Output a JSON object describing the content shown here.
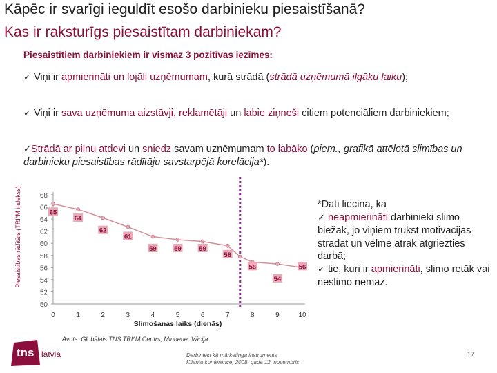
{
  "title_line1": "Kāpēc ir svarīgi ieguldīt esošo darbinieku piesaistīšanā?",
  "title_line2": "Kas ir raksturīgs piesaistītam darbiniekam?",
  "intro": "Piesaistītiem darbiniekiem ir vismaz 3 pozitīvas iezīmes:",
  "bullets": {
    "check": "✓",
    "b1_a": "Viņi ir ",
    "b1_hl": "apmierināti un lojāli uzņēmumam",
    "b1_b": ", kurā strādā (",
    "b1_it": "strādā uzņēmumā ilgāku laiku",
    "b1_c": ");",
    "b2_a": "Viņi ir ",
    "b2_hl1": "sava uzņēmuma aizstāvji, reklamētāji",
    "b2_b": " un ",
    "b2_hl2": "labie ziņneši",
    "b2_c": " citiem potenciāliem darbiniekiem;",
    "b3_hl1": "Strādā ar pilnu atdevi",
    "b3_a": " un ",
    "b3_hl2": "sniedz",
    "b3_b": " savam uzņēmumam ",
    "b3_hl3": "to labāko",
    "b3_c": " (",
    "b3_it": "piem., grafikā attēlotā slimības un darbinieku piesaistības rādītāju savstarpējā korelācija*",
    "b3_d": ")."
  },
  "note": {
    "line1": "*Dati liecina, ka",
    "check": "✓",
    "item1_hl": "neapmierināti",
    "item1_rest": " darbinieki slimo biežāk, jo viņiem trūkst motivācijas strādāt un vēlme ātrāk atgriezties darbā;",
    "item2_a": "tie, kuri ir ",
    "item2_hl": "apmierināti",
    "item2_b": ", slimo retāk vai neslimo nemaz."
  },
  "source": "Avots: Globālais TNS TRI*M Centrs, Minhene, Vācija",
  "footer_line1": "Darbinieki kā mārketinga instruments",
  "footer_line2": "Klientu konference, 2008. gada  12. novembris",
  "page_number": "17",
  "logo_text": "tns",
  "logo_country": "latvia",
  "colors": {
    "accent": "#8b0f3c",
    "line": "#d4909b",
    "marker": "#e9a9b6",
    "dashed": "#8a2a8a",
    "logo_bg": "#8b0f3c"
  },
  "chart_data": {
    "type": "line",
    "x": [
      0,
      1,
      2,
      3,
      4,
      5,
      6,
      7,
      8,
      9,
      10
    ],
    "x_tick_labels": [
      "0",
      "1",
      "2",
      "3",
      "4",
      "5",
      "6",
      "7",
      "8",
      "9",
      "10"
    ],
    "y_tick_labels": [
      "50",
      "52",
      "54",
      "56",
      "58",
      "60",
      "62",
      "64",
      "66",
      "68"
    ],
    "xlim": [
      0,
      10
    ],
    "ylim": [
      50,
      68
    ],
    "labeled_points": [
      {
        "x": 0,
        "y": 65,
        "label": "65"
      },
      {
        "x": 1,
        "y": 64,
        "label": "64"
      },
      {
        "x": 2,
        "y": 62,
        "label": "62"
      },
      {
        "x": 3,
        "y": 61,
        "label": "61"
      },
      {
        "x": 4,
        "y": 59,
        "label": "59"
      },
      {
        "x": 5,
        "y": 59,
        "label": "59"
      },
      {
        "x": 6,
        "y": 59,
        "label": "59"
      },
      {
        "x": 7,
        "y": 58,
        "label": "58"
      },
      {
        "x": 8,
        "y": 56,
        "label": "56"
      },
      {
        "x": 9,
        "y": 54,
        "label": "54"
      },
      {
        "x": 10,
        "y": 56,
        "label": "56"
      }
    ],
    "curve": [
      [
        0,
        66.5
      ],
      [
        1,
        65.6
      ],
      [
        2,
        64.2
      ],
      [
        3,
        62.7
      ],
      [
        4,
        61.1
      ],
      [
        5,
        60.6
      ],
      [
        6,
        60.3
      ],
      [
        7,
        59.6
      ],
      [
        7.5,
        57.8
      ],
      [
        8,
        56.9
      ],
      [
        9,
        56.6
      ],
      [
        10,
        56.0
      ]
    ],
    "reference_line_x": 7.5,
    "xlabel": "Slimošanas laiks (dienās)",
    "ylabel": "Piesaistības rādītājs (TRI*M indekss)",
    "grid": false
  }
}
